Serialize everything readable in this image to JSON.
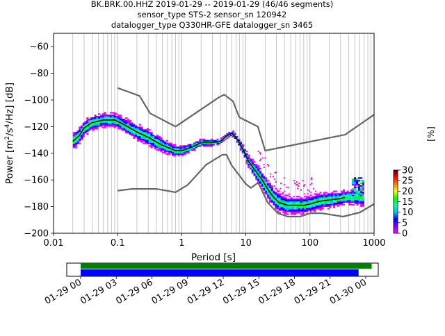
{
  "title": {
    "line1": "BK.BRK.00.HHZ   2019-01-29 -- 2019-01-29  (46/46 segments)",
    "line2": "sensor_type STS-2 sensor_sn 120942",
    "line3": "datalogger_type Q330HR-GFE datalogger_sn 3465"
  },
  "colorbar": {
    "label": "[%]",
    "ticks": [
      "0",
      "5",
      "10",
      "15",
      "20",
      "25",
      "30"
    ],
    "range": [
      0,
      30
    ],
    "colors": [
      "#ffffff",
      "#ff00ff",
      "#8000ff",
      "#0000ff",
      "#00c0ff",
      "#00ffa0",
      "#00ff00",
      "#ffff00",
      "#ff8000",
      "#ff0000",
      "#600000"
    ]
  },
  "colors": {
    "noise_model": "#666666",
    "mean_curve": "#000000",
    "coverage_data": "#008000",
    "coverage_segments": "#0000ff"
  },
  "chart_data": [
    {
      "type": "heatmap",
      "xlabel": "Period [s]",
      "ylabel": "Power [$m^2/s^4/Hz$] [dB]",
      "ylabel_parts": {
        "main": "Power [m",
        "sup1": "2",
        "mid": "/s",
        "sup2": "4",
        "tail": "/Hz] [dB]"
      },
      "xscale": "log",
      "xlim": [
        0.01,
        1000
      ],
      "ylim": [
        -200,
        -50
      ],
      "xticks": [
        0.01,
        0.1,
        1,
        10,
        100,
        1000
      ],
      "xticklabels": [
        "0.01",
        "0.1",
        "1",
        "10",
        "100",
        "1000"
      ],
      "yticks": [
        -200,
        -180,
        -160,
        -140,
        -120,
        -100,
        -80,
        -60
      ],
      "yticklabels": [
        "−200",
        "−180",
        "−160",
        "−140",
        "−120",
        "−100",
        "−80",
        "−60"
      ],
      "grid": "vertical-minor",
      "series": [
        {
          "name": "",
          "role": "high-noise-model",
          "points": [
            [
              0.1,
              -91
            ],
            [
              0.22,
              -97
            ],
            [
              0.32,
              -110
            ],
            [
              0.8,
              -120
            ],
            [
              3.8,
              -98
            ],
            [
              4.6,
              -96
            ],
            [
              6.3,
              -101
            ],
            [
              7.9,
              -113
            ],
            [
              15.4,
              -120
            ],
            [
              20,
              -138
            ],
            [
              354.8,
              -126
            ],
            [
              1000,
              -111
            ]
          ]
        },
        {
          "name": "",
          "role": "low-noise-model",
          "points": [
            [
              0.1,
              -168
            ],
            [
              0.17,
              -166.7
            ],
            [
              0.4,
              -166.7
            ],
            [
              0.8,
              -169.2
            ],
            [
              1.24,
              -163.7
            ],
            [
              2.4,
              -148.6
            ],
            [
              4.3,
              -141.1
            ],
            [
              5,
              -141.1
            ],
            [
              6,
              -149
            ],
            [
              10,
              -163
            ],
            [
              12,
              -166
            ],
            [
              15.6,
              -162
            ],
            [
              21.9,
              -177
            ],
            [
              31.6,
              -185
            ],
            [
              45,
              -187.5
            ],
            [
              70,
              -187.5
            ],
            [
              101,
              -185
            ],
            [
              154,
              -185
            ],
            [
              328,
              -187.5
            ],
            [
              600,
              -184.4
            ],
            [
              1000,
              -178
            ]
          ]
        },
        {
          "name": "",
          "role": "mean-psd",
          "points": [
            [
              0.02,
              -131
            ],
            [
              0.025,
              -127
            ],
            [
              0.03,
              -121
            ],
            [
              0.04,
              -117
            ],
            [
              0.06,
              -115
            ],
            [
              0.09,
              -115
            ],
            [
              0.12,
              -118
            ],
            [
              0.2,
              -124
            ],
            [
              0.3,
              -128
            ],
            [
              0.5,
              -134
            ],
            [
              0.8,
              -138
            ],
            [
              1,
              -138
            ],
            [
              1.5,
              -135
            ],
            [
              2,
              -132
            ],
            [
              3,
              -132
            ],
            [
              4,
              -131
            ],
            [
              5,
              -127
            ],
            [
              6,
              -125
            ],
            [
              7,
              -128
            ],
            [
              9,
              -137
            ],
            [
              11,
              -146
            ],
            [
              14,
              -153
            ],
            [
              18,
              -160
            ],
            [
              22,
              -167
            ],
            [
              27,
              -173
            ],
            [
              33,
              -177
            ],
            [
              45,
              -179
            ],
            [
              60,
              -179
            ],
            [
              80,
              -179
            ],
            [
              100,
              -178
            ],
            [
              140,
              -176
            ],
            [
              200,
              -175
            ],
            [
              300,
              -174
            ],
            [
              350,
              -173
            ]
          ]
        }
      ],
      "density_spread_db": [
        [
          0.02,
          5
        ],
        [
          0.05,
          4
        ],
        [
          0.1,
          4
        ],
        [
          0.3,
          5
        ],
        [
          0.8,
          3
        ],
        [
          2,
          2
        ],
        [
          5,
          1
        ],
        [
          8,
          2
        ],
        [
          15,
          5
        ],
        [
          30,
          6
        ],
        [
          60,
          5
        ],
        [
          150,
          5
        ],
        [
          400,
          4
        ],
        [
          700,
          5
        ]
      ],
      "segment_blocks": [
        {
          "x_range": [
            450,
            700
          ],
          "value_range": [
            -172,
            -158
          ],
          "level": 3
        }
      ]
    },
    {
      "type": "bar",
      "role": "data-coverage",
      "x_range": [
        "2019-01-29 00:00",
        "2019-01-30 00:00"
      ],
      "xticklabels": [
        "01-29 00",
        "01-29 03",
        "01-29 06",
        "01-29 09",
        "01-29 12",
        "01-29 15",
        "01-29 18",
        "01-29 21",
        "01-30 00"
      ],
      "series": [
        {
          "name": "",
          "role": "data",
          "start_hours": 0,
          "end_hours": 24.5
        },
        {
          "name": "",
          "role": "segments",
          "start_hours": 0,
          "end_hours": 23.4
        }
      ]
    }
  ]
}
